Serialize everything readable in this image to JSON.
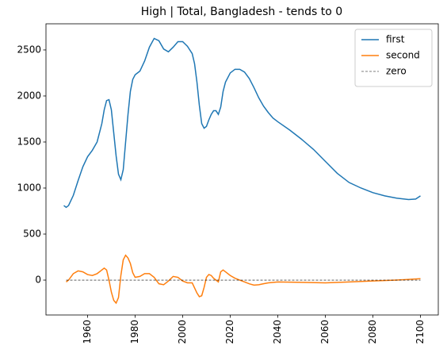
{
  "chart_data": {
    "type": "line",
    "title": "High | Total, Bangladesh  - tends to 0",
    "xlim": [
      1942.5,
      2107.5
    ],
    "xticks": [
      1960,
      1980,
      2000,
      2020,
      2040,
      2060,
      2080,
      2100
    ],
    "ylim": [
      -379,
      2784
    ],
    "yticks": [
      0,
      500,
      1000,
      1500,
      2000,
      2500
    ],
    "legend": "upper right",
    "grid": false,
    "series": [
      {
        "name": "first",
        "color": "#1f77b4",
        "linestyle": "solid",
        "x": [
          1950,
          1951,
          1952,
          1954,
          1956,
          1958,
          1960,
          1962,
          1964,
          1966,
          1967,
          1968,
          1969,
          1970,
          1971,
          1972,
          1973,
          1974,
          1975,
          1976,
          1977,
          1978,
          1979,
          1980,
          1982,
          1984,
          1986,
          1988,
          1990,
          1992,
          1994,
          1996,
          1998,
          2000,
          2002,
          2004,
          2005,
          2006,
          2007,
          2008,
          2009,
          2010,
          2011,
          2012,
          2013,
          2014,
          2015,
          2016,
          2017,
          2018,
          2020,
          2022,
          2024,
          2026,
          2028,
          2030,
          2032,
          2034,
          2036,
          2038,
          2040,
          2045,
          2050,
          2055,
          2060,
          2065,
          2070,
          2075,
          2080,
          2085,
          2090,
          2095,
          2098,
          2100
        ],
        "values": [
          810,
          790,
          810,
          920,
          1080,
          1230,
          1340,
          1410,
          1500,
          1700,
          1850,
          1950,
          1960,
          1850,
          1600,
          1350,
          1150,
          1090,
          1200,
          1500,
          1800,
          2050,
          2180,
          2230,
          2270,
          2380,
          2530,
          2625,
          2600,
          2510,
          2480,
          2530,
          2590,
          2590,
          2540,
          2460,
          2350,
          2150,
          1900,
          1700,
          1650,
          1670,
          1740,
          1800,
          1840,
          1840,
          1800,
          1880,
          2050,
          2150,
          2250,
          2290,
          2290,
          2260,
          2190,
          2090,
          1980,
          1890,
          1820,
          1760,
          1720,
          1630,
          1530,
          1420,
          1290,
          1160,
          1060,
          1000,
          950,
          915,
          890,
          875,
          880,
          915
        ]
      },
      {
        "name": "second",
        "color": "#ff7f0e",
        "linestyle": "solid",
        "x": [
          1951,
          1952,
          1954,
          1956,
          1958,
          1960,
          1962,
          1964,
          1966,
          1967,
          1968,
          1969,
          1970,
          1971,
          1972,
          1973,
          1974,
          1975,
          1976,
          1977,
          1978,
          1979,
          1980,
          1982,
          1984,
          1986,
          1988,
          1990,
          1992,
          1994,
          1996,
          1998,
          2000,
          2002,
          2004,
          2006,
          2007,
          2008,
          2009,
          2010,
          2011,
          2012,
          2013,
          2014,
          2015,
          2016,
          2017,
          2018,
          2020,
          2022,
          2024,
          2026,
          2028,
          2030,
          2032,
          2034,
          2036,
          2040,
          2050,
          2060,
          2070,
          2080,
          2090,
          2100
        ],
        "values": [
          -20,
          0,
          70,
          100,
          90,
          60,
          50,
          70,
          110,
          130,
          110,
          0,
          -130,
          -220,
          -250,
          -190,
          50,
          220,
          270,
          240,
          180,
          80,
          30,
          40,
          70,
          70,
          30,
          -40,
          -50,
          -10,
          40,
          30,
          -10,
          -30,
          -30,
          -140,
          -180,
          -170,
          -80,
          30,
          60,
          50,
          20,
          0,
          -20,
          90,
          110,
          90,
          50,
          20,
          0,
          -20,
          -40,
          -55,
          -50,
          -40,
          -30,
          -20,
          -25,
          -30,
          -20,
          -10,
          0,
          15
        ]
      },
      {
        "name": "zero",
        "color": "#000000",
        "linestyle": "dashed",
        "x": [
          1951,
          2100
        ],
        "values": [
          0,
          0
        ]
      }
    ]
  }
}
